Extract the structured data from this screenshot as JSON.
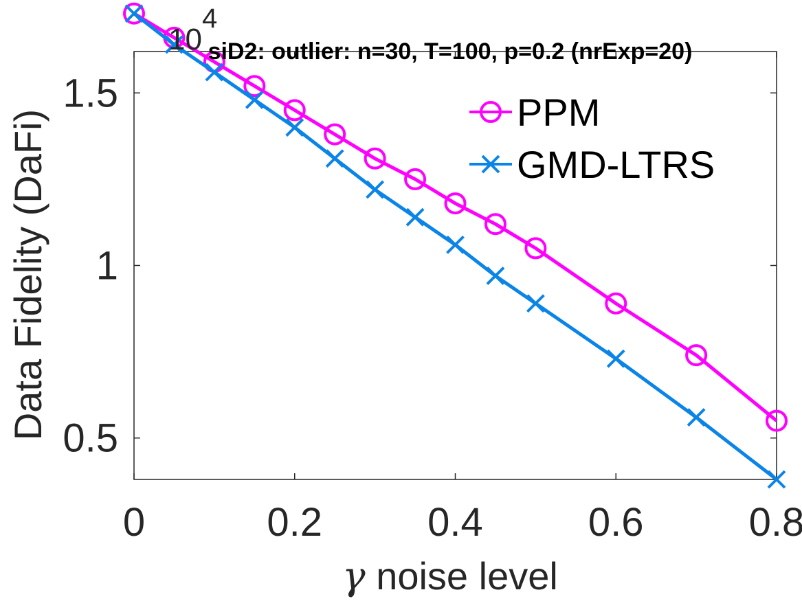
{
  "chart_data": {
    "type": "line",
    "title": "siD2: outlier: n=30, T=100, p=0.2 (nrExp=20)",
    "xlabel": "noise level",
    "xlabel_symbol": "γ",
    "ylabel": "Data Fidelity (DaFi)",
    "y_exponent_base": "10",
    "y_exponent_power": "4",
    "xlim": [
      0,
      0.8
    ],
    "ylim": [
      0.38,
      1.62
    ],
    "xticks": [
      0,
      0.2,
      0.4,
      0.6,
      0.8
    ],
    "xtick_labels": [
      "0",
      "0.2",
      "0.4",
      "0.6",
      "0.8"
    ],
    "yticks": [
      0.5,
      1,
      1.5
    ],
    "ytick_labels": [
      "0.5",
      "1",
      "1.5"
    ],
    "grid": false,
    "legend_position": "top-right",
    "x": [
      0,
      0.05,
      0.1,
      0.15,
      0.2,
      0.25,
      0.3,
      0.35,
      0.4,
      0.45,
      0.5,
      0.6,
      0.7,
      0.8
    ],
    "series": [
      {
        "name": "PPM",
        "color": "#ff00ff",
        "marker": "circle",
        "values": [
          1.73,
          1.66,
          1.59,
          1.52,
          1.45,
          1.38,
          1.31,
          1.25,
          1.18,
          1.12,
          1.05,
          0.89,
          0.74,
          0.55
        ]
      },
      {
        "name": "GMD-LTRS",
        "color": "#0b84e8",
        "marker": "x",
        "values": [
          1.73,
          1.64,
          1.56,
          1.48,
          1.4,
          1.31,
          1.22,
          1.14,
          1.06,
          0.97,
          0.89,
          0.73,
          0.56,
          0.38
        ]
      }
    ]
  }
}
